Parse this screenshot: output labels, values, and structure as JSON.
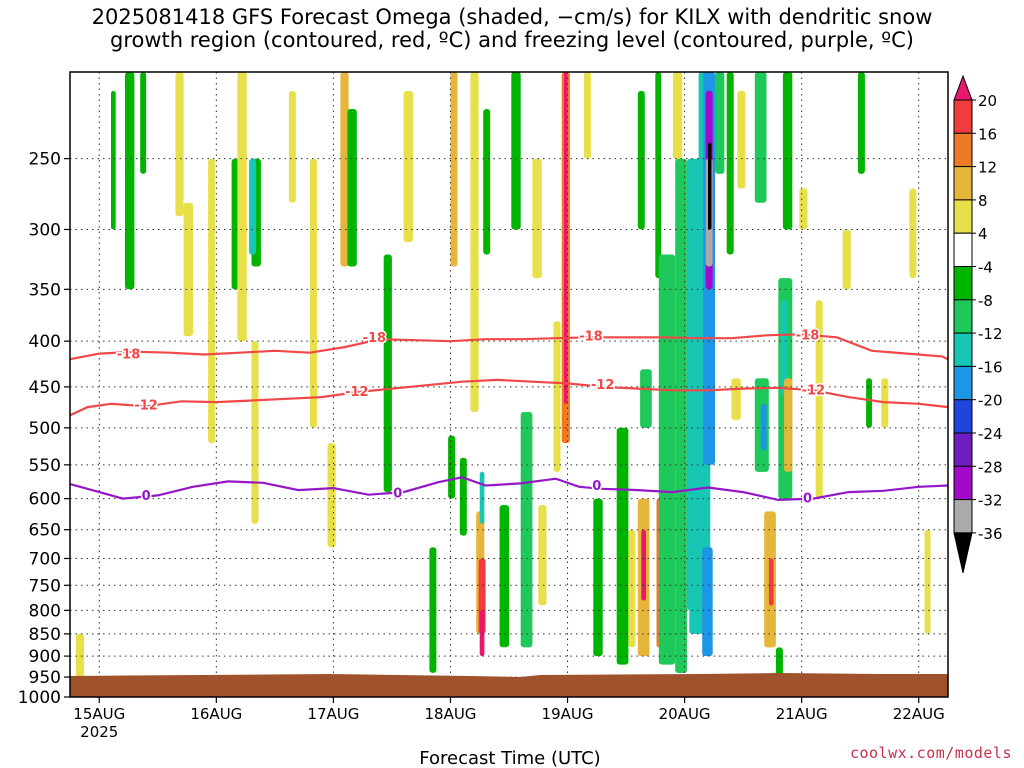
{
  "title": {
    "line1": "2025081418 GFS Forecast Omega (shaded, −cm/s) for KILX with dendritic snow",
    "line2": "growth region (contoured, red, ºC) and freezing level (contoured, purple, ºC)"
  },
  "credit": "coolwx.com/models",
  "chart_data": {
    "type": "heatmap",
    "title": "2025081418 GFS Forecast Omega (shaded, −cm/s) for KILX with dendritic snow growth region (contoured, red, ºC) and freezing level (contoured, purple, ºC)",
    "xlabel": "Forecast Time (UTC)",
    "ylabel": "",
    "x_range": [
      "2025-08-14 18Z",
      "2025-08-22 06Z"
    ],
    "x_ticks": [
      {
        "label": "15AUG",
        "sublabel": "2025",
        "day": 15
      },
      {
        "label": "16AUG",
        "day": 16
      },
      {
        "label": "17AUG",
        "day": 17
      },
      {
        "label": "18AUG",
        "day": 18
      },
      {
        "label": "19AUG",
        "day": 19
      },
      {
        "label": "20AUG",
        "day": 20
      },
      {
        "label": "21AUG",
        "day": 21
      },
      {
        "label": "22AUG",
        "day": 22
      }
    ],
    "y_scale": "pressure (hPa), reversed",
    "y_range": [
      1000,
      200
    ],
    "y_ticks": [
      250,
      300,
      350,
      400,
      450,
      500,
      550,
      600,
      650,
      700,
      750,
      800,
      850,
      900,
      950,
      1000
    ],
    "grid": true,
    "colorbar": {
      "labels": [
        "20",
        "16",
        "12",
        "8",
        "4",
        "-4",
        "-8",
        "-12",
        "-16",
        "-20",
        "-24",
        "-28",
        "-32",
        "-36"
      ],
      "colors": [
        "#e8186c",
        "#f03c3c",
        "#ee7a28",
        "#e6b63a",
        "#e8e04a",
        "#ffffff",
        "#00b400",
        "#1ec85a",
        "#18c6b4",
        "#1e96e6",
        "#1e46dc",
        "#6e1ebe",
        "#a00ac8",
        "#aaaaaa",
        "#000000"
      ]
    },
    "contours": [
      {
        "name": "-18",
        "color": "#f04848",
        "points": [
          [
            14.75,
            419
          ],
          [
            15.0,
            413
          ],
          [
            15.3,
            411
          ],
          [
            15.6,
            412
          ],
          [
            15.9,
            414
          ],
          [
            16.2,
            412
          ],
          [
            16.5,
            410
          ],
          [
            16.8,
            412
          ],
          [
            17.1,
            406
          ],
          [
            17.4,
            398
          ],
          [
            17.7,
            399
          ],
          [
            18.0,
            400
          ],
          [
            18.3,
            398
          ],
          [
            18.6,
            398
          ],
          [
            18.9,
            397
          ],
          [
            19.2,
            396
          ],
          [
            19.5,
            396
          ],
          [
            19.8,
            396
          ],
          [
            20.1,
            397
          ],
          [
            20.4,
            397
          ],
          [
            20.7,
            394
          ],
          [
            21.0,
            393
          ],
          [
            21.3,
            396
          ],
          [
            21.6,
            410
          ],
          [
            21.9,
            413
          ],
          [
            22.2,
            416
          ],
          [
            22.25,
            419
          ]
        ],
        "labels": [
          [
            15.25,
            414
          ],
          [
            17.35,
            397
          ],
          [
            19.2,
            395
          ],
          [
            21.05,
            394
          ]
        ]
      },
      {
        "name": "-12",
        "color": "#f04848",
        "points": [
          [
            14.75,
            484
          ],
          [
            14.9,
            474
          ],
          [
            15.1,
            470
          ],
          [
            15.4,
            473
          ],
          [
            15.7,
            467
          ],
          [
            16.0,
            468
          ],
          [
            16.3,
            466
          ],
          [
            16.6,
            464
          ],
          [
            16.9,
            462
          ],
          [
            17.2,
            456
          ],
          [
            17.5,
            452
          ],
          [
            17.8,
            448
          ],
          [
            18.1,
            444
          ],
          [
            18.4,
            442
          ],
          [
            18.7,
            444
          ],
          [
            19.0,
            446
          ],
          [
            19.3,
            450
          ],
          [
            19.6,
            452
          ],
          [
            19.9,
            454
          ],
          [
            20.2,
            454
          ],
          [
            20.5,
            452
          ],
          [
            20.8,
            451
          ],
          [
            21.1,
            454
          ],
          [
            21.4,
            462
          ],
          [
            21.7,
            468
          ],
          [
            22.0,
            470
          ],
          [
            22.25,
            474
          ]
        ],
        "labels": [
          [
            15.4,
            472
          ],
          [
            17.2,
            456
          ],
          [
            19.3,
            448
          ],
          [
            21.1,
            454
          ]
        ]
      },
      {
        "name": "0",
        "color": "#9418c8",
        "points": [
          [
            14.75,
            578
          ],
          [
            15.0,
            590
          ],
          [
            15.2,
            600
          ],
          [
            15.5,
            595
          ],
          [
            15.8,
            582
          ],
          [
            16.1,
            574
          ],
          [
            16.4,
            576
          ],
          [
            16.7,
            587
          ],
          [
            17.0,
            584
          ],
          [
            17.3,
            594
          ],
          [
            17.6,
            590
          ],
          [
            17.9,
            575
          ],
          [
            18.1,
            568
          ],
          [
            18.3,
            580
          ],
          [
            18.6,
            577
          ],
          [
            18.9,
            570
          ],
          [
            19.1,
            582
          ],
          [
            19.3,
            585
          ],
          [
            19.6,
            587
          ],
          [
            19.9,
            590
          ],
          [
            20.2,
            583
          ],
          [
            20.5,
            590
          ],
          [
            20.8,
            602
          ],
          [
            21.1,
            600
          ],
          [
            21.4,
            590
          ],
          [
            21.7,
            588
          ],
          [
            22.0,
            582
          ],
          [
            22.25,
            580
          ]
        ],
        "labels": [
          [
            15.4,
            596
          ],
          [
            17.55,
            592
          ],
          [
            19.25,
            581
          ],
          [
            21.05,
            600
          ]
        ]
      }
    ],
    "omega_regions": [
      {
        "t": [
          14.8,
          14.87
        ],
        "p": [
          850,
          955
        ],
        "v": 6
      },
      {
        "t": [
          15.1,
          15.14
        ],
        "p": [
          210,
          300
        ],
        "v": -6
      },
      {
        "t": [
          15.22,
          15.3
        ],
        "p": [
          200,
          350
        ],
        "v": -6
      },
      {
        "t": [
          15.35,
          15.4
        ],
        "p": [
          200,
          260
        ],
        "v": -6
      },
      {
        "t": [
          15.65,
          15.72
        ],
        "p": [
          200,
          290
        ],
        "v": 6
      },
      {
        "t": [
          15.72,
          15.8
        ],
        "p": [
          280,
          395
        ],
        "v": 6
      },
      {
        "t": [
          15.93,
          15.99
        ],
        "p": [
          250,
          520
        ],
        "v": 6
      },
      {
        "t": [
          16.13,
          16.19
        ],
        "p": [
          250,
          350
        ],
        "v": -6
      },
      {
        "t": [
          16.18,
          16.26
        ],
        "p": [
          200,
          400
        ],
        "v": 6
      },
      {
        "t": [
          16.3,
          16.38
        ],
        "p": [
          250,
          330
        ],
        "v": -7
      },
      {
        "t": [
          16.28,
          16.34
        ],
        "p": [
          250,
          320
        ],
        "v": -14
      },
      {
        "t": [
          16.3,
          16.36
        ],
        "p": [
          400,
          640
        ],
        "v": 6
      },
      {
        "t": [
          16.62,
          16.68
        ],
        "p": [
          210,
          280
        ],
        "v": 6
      },
      {
        "t": [
          16.8,
          16.86
        ],
        "p": [
          250,
          500
        ],
        "v": 6
      },
      {
        "t": [
          16.95,
          17.02
        ],
        "p": [
          520,
          680
        ],
        "v": 6
      },
      {
        "t": [
          17.06,
          17.13
        ],
        "p": [
          200,
          330
        ],
        "v": 10
      },
      {
        "t": [
          17.12,
          17.2
        ],
        "p": [
          220,
          330
        ],
        "v": -7
      },
      {
        "t": [
          17.43,
          17.5
        ],
        "p": [
          320,
          590
        ],
        "v": -7
      },
      {
        "t": [
          17.6,
          17.68
        ],
        "p": [
          210,
          310
        ],
        "v": 6
      },
      {
        "t": [
          17.82,
          17.88
        ],
        "p": [
          680,
          940
        ],
        "v": -7
      },
      {
        "t": [
          17.98,
          18.04
        ],
        "p": [
          510,
          600
        ],
        "v": -6
      },
      {
        "t": [
          18.0,
          18.06
        ],
        "p": [
          200,
          330
        ],
        "v": 10
      },
      {
        "t": [
          18.08,
          18.14
        ],
        "p": [
          540,
          660
        ],
        "v": -7
      },
      {
        "t": [
          18.17,
          18.24
        ],
        "p": [
          200,
          480
        ],
        "v": 6
      },
      {
        "t": [
          18.22,
          18.29
        ],
        "p": [
          620,
          850
        ],
        "v": 10
      },
      {
        "t": [
          18.24,
          18.3
        ],
        "p": [
          700,
          850
        ],
        "v": 16
      },
      {
        "t": [
          18.25,
          18.29
        ],
        "p": [
          560,
          640
        ],
        "v": -14
      },
      {
        "t": [
          18.25,
          18.29
        ],
        "p": [
          800,
          900
        ],
        "v": 20
      },
      {
        "t": [
          18.28,
          18.34
        ],
        "p": [
          220,
          320
        ],
        "v": -7
      },
      {
        "t": [
          18.42,
          18.5
        ],
        "p": [
          610,
          880
        ],
        "v": -7
      },
      {
        "t": [
          18.52,
          18.6
        ],
        "p": [
          200,
          300
        ],
        "v": -7
      },
      {
        "t": [
          18.6,
          18.7
        ],
        "p": [
          480,
          880
        ],
        "v": -8
      },
      {
        "t": [
          18.7,
          18.78
        ],
        "p": [
          250,
          340
        ],
        "v": 6
      },
      {
        "t": [
          18.75,
          18.82
        ],
        "p": [
          610,
          790
        ],
        "v": 6
      },
      {
        "t": [
          18.88,
          18.94
        ],
        "p": [
          380,
          560
        ],
        "v": 6
      },
      {
        "t": [
          18.95,
          19.02
        ],
        "p": [
          200,
          520
        ],
        "v": 12
      },
      {
        "t": [
          18.97,
          19.0
        ],
        "p": [
          200,
          470
        ],
        "v": 20
      },
      {
        "t": [
          19.14,
          19.2
        ],
        "p": [
          200,
          250
        ],
        "v": 6
      },
      {
        "t": [
          19.22,
          19.3
        ],
        "p": [
          600,
          900
        ],
        "v": -7
      },
      {
        "t": [
          19.42,
          19.52
        ],
        "p": [
          500,
          920
        ],
        "v": -7
      },
      {
        "t": [
          19.52,
          19.58
        ],
        "p": [
          650,
          880
        ],
        "v": 6
      },
      {
        "t": [
          19.6,
          19.66
        ],
        "p": [
          210,
          300
        ],
        "v": -6
      },
      {
        "t": [
          19.62,
          19.72
        ],
        "p": [
          430,
          500
        ],
        "v": -10
      },
      {
        "t": [
          19.6,
          19.7
        ],
        "p": [
          600,
          900
        ],
        "v": 10
      },
      {
        "t": [
          19.63,
          19.67
        ],
        "p": [
          650,
          780
        ],
        "v": 20
      },
      {
        "t": [
          19.75,
          19.8
        ],
        "p": [
          200,
          340
        ],
        "v": -7
      },
      {
        "t": [
          19.76,
          19.8
        ],
        "p": [
          600,
          880
        ],
        "v": 12
      },
      {
        "t": [
          19.78,
          19.92
        ],
        "p": [
          320,
          920
        ],
        "v": -8
      },
      {
        "t": [
          19.9,
          19.98
        ],
        "p": [
          200,
          250
        ],
        "v": 6
      },
      {
        "t": [
          19.92,
          20.02
        ],
        "p": [
          250,
          940
        ],
        "v": -10
      },
      {
        "t": [
          20.02,
          20.18
        ],
        "p": [
          250,
          800
        ],
        "v": -12
      },
      {
        "t": [
          20.04,
          20.16
        ],
        "p": [
          600,
          850
        ],
        "v": -14
      },
      {
        "t": [
          20.12,
          20.22
        ],
        "p": [
          200,
          700
        ],
        "v": -14
      },
      {
        "t": [
          20.16,
          20.26
        ],
        "p": [
          200,
          550
        ],
        "v": -18
      },
      {
        "t": [
          20.18,
          20.24
        ],
        "p": [
          210,
          350
        ],
        "v": -30
      },
      {
        "t": [
          20.18,
          20.24
        ],
        "p": [
          250,
          330
        ],
        "v": -32
      },
      {
        "t": [
          20.2,
          20.23
        ],
        "p": [
          240,
          300
        ],
        "v": -38
      },
      {
        "t": [
          20.15,
          20.24
        ],
        "p": [
          680,
          900
        ],
        "v": -16
      },
      {
        "t": [
          20.26,
          20.34
        ],
        "p": [
          200,
          260
        ],
        "v": -8
      },
      {
        "t": [
          20.36,
          20.42
        ],
        "p": [
          200,
          320
        ],
        "v": -7
      },
      {
        "t": [
          20.4,
          20.48
        ],
        "p": [
          440,
          490
        ],
        "v": 6
      },
      {
        "t": [
          20.45,
          20.52
        ],
        "p": [
          210,
          270
        ],
        "v": 6
      },
      {
        "t": [
          20.6,
          20.7
        ],
        "p": [
          200,
          280
        ],
        "v": -8
      },
      {
        "t": [
          20.6,
          20.72
        ],
        "p": [
          440,
          560
        ],
        "v": -10
      },
      {
        "t": [
          20.65,
          20.7
        ],
        "p": [
          470,
          530
        ],
        "v": -18
      },
      {
        "t": [
          20.68,
          20.78
        ],
        "p": [
          620,
          880
        ],
        "v": 8
      },
      {
        "t": [
          20.72,
          20.76
        ],
        "p": [
          700,
          790
        ],
        "v": 16
      },
      {
        "t": [
          20.84,
          20.92
        ],
        "p": [
          200,
          300
        ],
        "v": -7
      },
      {
        "t": [
          20.8,
          20.92
        ],
        "p": [
          340,
          600
        ],
        "v": -8
      },
      {
        "t": [
          20.82,
          20.88
        ],
        "p": [
          360,
          460
        ],
        "v": -12
      },
      {
        "t": [
          20.85,
          20.92
        ],
        "p": [
          440,
          560
        ],
        "v": 8
      },
      {
        "t": [
          20.78,
          20.84
        ],
        "p": [
          880,
          960
        ],
        "v": -7
      },
      {
        "t": [
          20.98,
          21.05
        ],
        "p": [
          270,
          300
        ],
        "v": 6
      },
      {
        "t": [
          21.12,
          21.18
        ],
        "p": [
          360,
          600
        ],
        "v": 6
      },
      {
        "t": [
          21.35,
          21.42
        ],
        "p": [
          300,
          350
        ],
        "v": 6
      },
      {
        "t": [
          21.48,
          21.54
        ],
        "p": [
          200,
          260
        ],
        "v": -7
      },
      {
        "t": [
          21.55,
          21.6
        ],
        "p": [
          440,
          500
        ],
        "v": -7
      },
      {
        "t": [
          21.68,
          21.74
        ],
        "p": [
          440,
          500
        ],
        "v": 6
      },
      {
        "t": [
          21.92,
          21.98
        ],
        "p": [
          270,
          340
        ],
        "v": 6
      },
      {
        "t": [
          22.05,
          22.1
        ],
        "p": [
          650,
          850
        ],
        "v": 6
      }
    ]
  }
}
